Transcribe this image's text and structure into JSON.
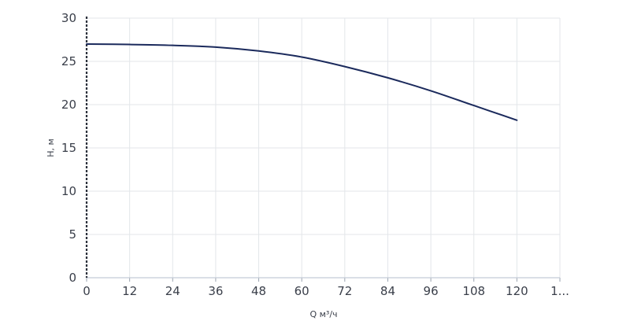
{
  "chart_data": {
    "type": "line",
    "xlabel": "Q м³/ч",
    "ylabel": "H, м",
    "x_ticks": [
      "0",
      "12",
      "24",
      "36",
      "48",
      "60",
      "72",
      "84",
      "96",
      "108",
      "120",
      "1..."
    ],
    "y_ticks": [
      "0",
      "5",
      "10",
      "15",
      "20",
      "25",
      "30"
    ],
    "xlim": [
      0,
      132
    ],
    "ylim": [
      0,
      30
    ],
    "grid": true,
    "series": [
      {
        "color": "#1b2a5c",
        "x": [
          0,
          12,
          24,
          36,
          48,
          60,
          72,
          84,
          96,
          108,
          120
        ],
        "y": [
          27.0,
          26.95,
          26.85,
          26.65,
          26.2,
          25.5,
          24.4,
          23.1,
          21.6,
          19.9,
          18.2
        ]
      }
    ]
  }
}
